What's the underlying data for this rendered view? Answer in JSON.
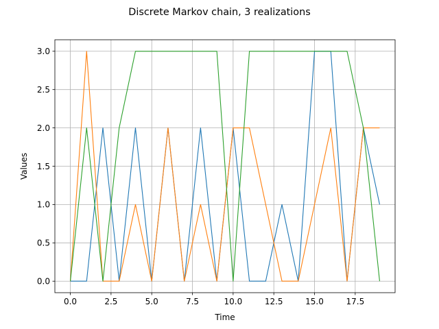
{
  "chart_data": {
    "type": "line",
    "title": "Discrete Markov chain, 3 realizations",
    "xlabel": "Time",
    "ylabel": "Values",
    "xlim": [
      -0.95,
      19.95
    ],
    "ylim": [
      -0.15,
      3.15
    ],
    "grid": true,
    "legend": "none",
    "x_ticks": [
      0.0,
      2.5,
      5.0,
      7.5,
      10.0,
      12.5,
      15.0,
      17.5
    ],
    "x_tick_labels": [
      "0.0",
      "2.5",
      "5.0",
      "7.5",
      "10.0",
      "12.5",
      "15.0",
      "17.5"
    ],
    "y_ticks": [
      0.0,
      0.5,
      1.0,
      1.5,
      2.0,
      2.5,
      3.0
    ],
    "y_tick_labels": [
      "0.0",
      "0.5",
      "1.0",
      "1.5",
      "2.0",
      "2.5",
      "3.0"
    ],
    "x": [
      0,
      1,
      2,
      3,
      4,
      5,
      6,
      7,
      8,
      9,
      10,
      11,
      12,
      13,
      14,
      15,
      16,
      17,
      18,
      19
    ],
    "series": [
      {
        "color": "#1f77b4",
        "values": [
          0,
          0,
          2,
          0,
          2,
          0,
          2,
          0,
          2,
          0,
          2,
          0,
          0,
          1,
          0,
          3,
          3,
          0,
          2,
          1
        ]
      },
      {
        "color": "#ff7f0e",
        "values": [
          0,
          3,
          0,
          0,
          1,
          0,
          2,
          0,
          1,
          0,
          2,
          2,
          1,
          0,
          0,
          1,
          2,
          0,
          2,
          2
        ]
      },
      {
        "color": "#2ca02c",
        "values": [
          0,
          2,
          0,
          2,
          3,
          3,
          3,
          3,
          3,
          3,
          0,
          3,
          3,
          3,
          3,
          3,
          3,
          3,
          2,
          0
        ]
      }
    ]
  }
}
